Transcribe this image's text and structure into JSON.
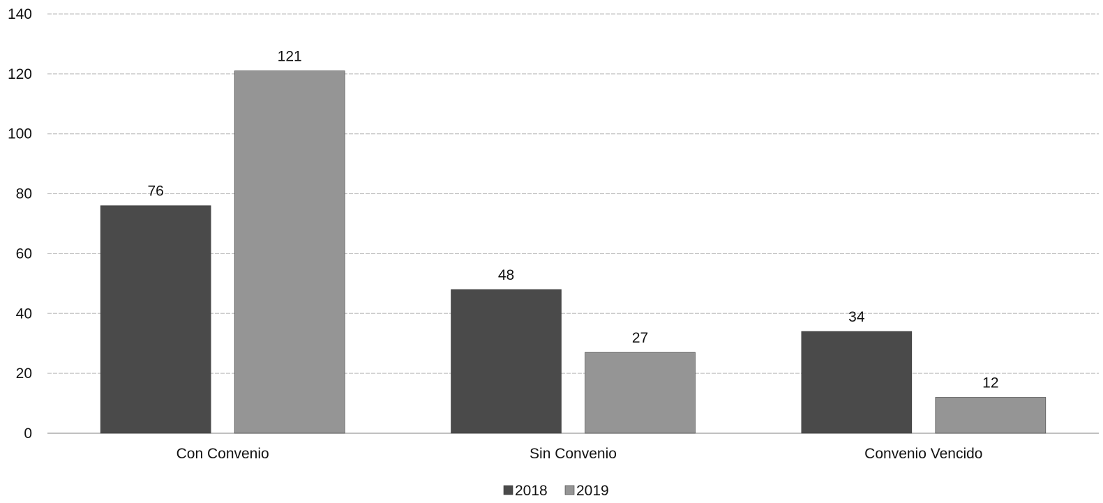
{
  "chart_data": {
    "type": "bar",
    "categories": [
      "Con Convenio",
      "Sin Convenio",
      "Convenio Vencido"
    ],
    "series": [
      {
        "name": "2018",
        "values": [
          76,
          48,
          34
        ],
        "color": "#4a4a4a"
      },
      {
        "name": "2019",
        "values": [
          121,
          27,
          12
        ],
        "color": "#959595"
      }
    ],
    "ylim": [
      0,
      140
    ],
    "yticks": [
      0,
      20,
      40,
      60,
      80,
      100,
      120,
      140
    ],
    "grid": true,
    "legend": "bottom-center"
  }
}
